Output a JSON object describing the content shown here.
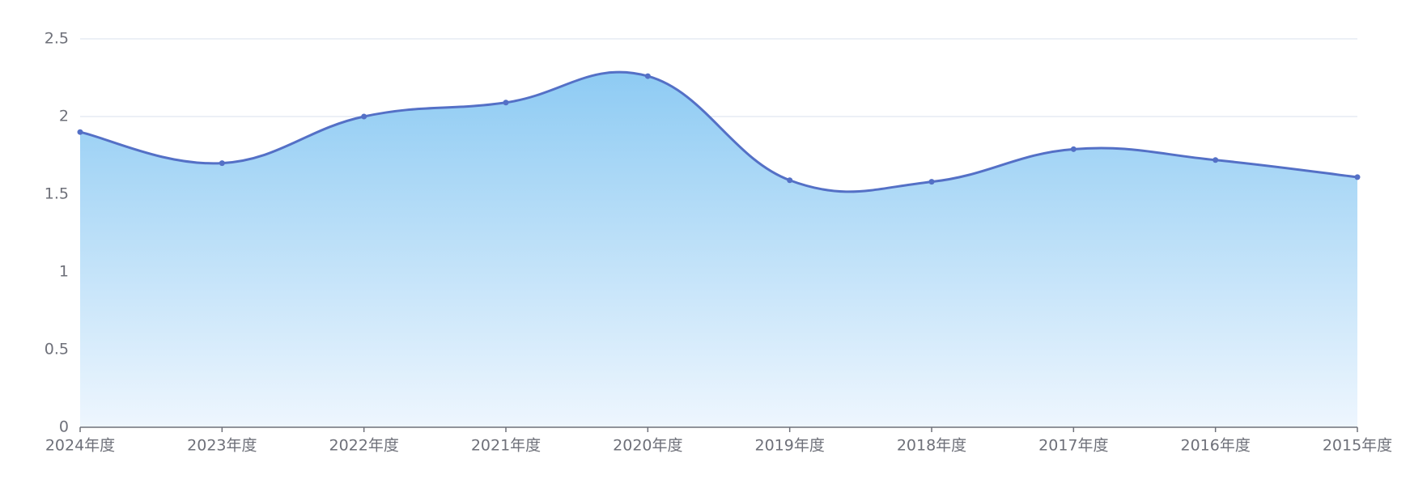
{
  "chart_data": {
    "type": "area",
    "categories": [
      "2024年度",
      "2023年度",
      "2022年度",
      "2021年度",
      "2020年度",
      "2019年度",
      "2018年度",
      "2017年度",
      "2016年度",
      "2015年度"
    ],
    "values": [
      1.9,
      1.7,
      2.0,
      2.09,
      2.26,
      1.59,
      1.58,
      1.79,
      1.72,
      1.61
    ],
    "color": "#5470c6",
    "ylim": [
      0,
      2.5
    ],
    "yticks": [
      0,
      0.5,
      1,
      1.5,
      2,
      2.5
    ],
    "grid": true,
    "smooth": true
  }
}
